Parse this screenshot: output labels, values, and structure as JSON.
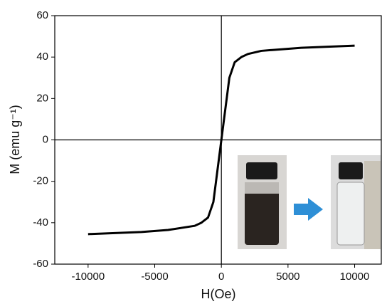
{
  "chart_data": {
    "type": "line",
    "xlabel": "H(Oe)",
    "ylabel": "M (emu g⁻¹)",
    "x": [
      -10000,
      -8000,
      -6000,
      -4000,
      -2000,
      -1500,
      -1000,
      -600,
      -300,
      0,
      300,
      600,
      1000,
      1500,
      2000,
      3000,
      4000,
      6000,
      8000,
      10000
    ],
    "series": [
      {
        "color": "#000000",
        "values": [
          -45.5,
          -45,
          -44.5,
          -43.5,
          -41.5,
          -40,
          -37.5,
          -30,
          -15,
          0,
          15,
          30,
          37.5,
          40,
          41.5,
          43,
          43.5,
          44.5,
          45,
          45.5
        ]
      }
    ],
    "xlim": [
      -12500,
      12000
    ],
    "xticks": [
      -10000,
      -5000,
      0,
      5000,
      10000
    ],
    "ylim": [
      -60,
      60
    ],
    "yticks": [
      -60,
      -40,
      -20,
      0,
      20,
      40,
      60
    ]
  }
}
